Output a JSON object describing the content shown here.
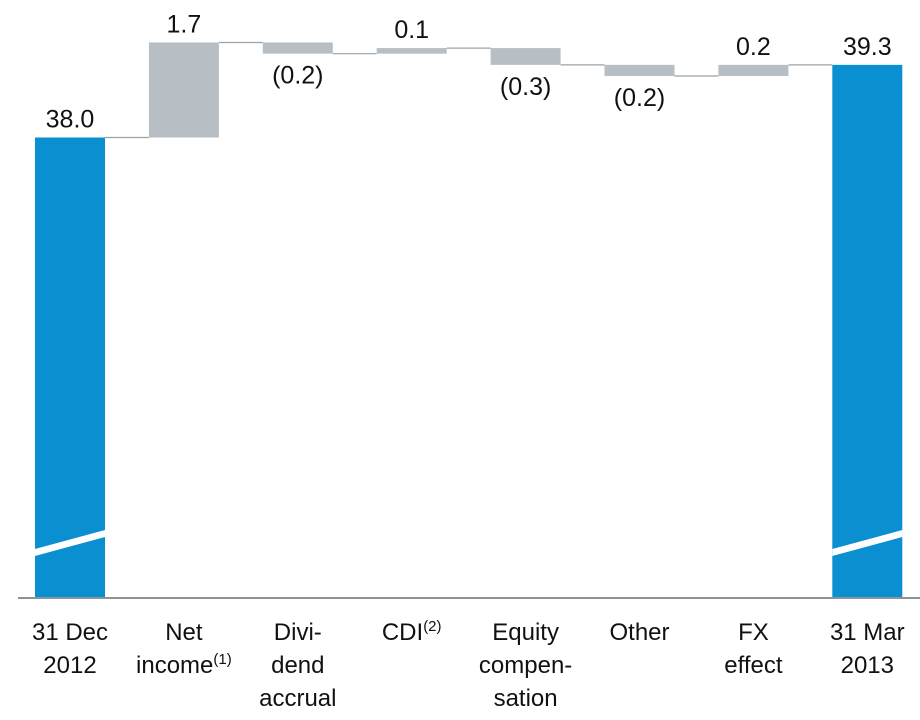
{
  "chart_data": {
    "type": "bar",
    "subtype": "waterfall",
    "categories": [
      [
        "31 Dec",
        "2012"
      ],
      [
        "Net",
        "income"
      ],
      [
        "Divi-",
        "dend",
        "accrual"
      ],
      [
        "CDI"
      ],
      [
        "Equity",
        "compen-",
        "sation"
      ],
      [
        "Other"
      ],
      [
        "FX",
        "effect"
      ],
      [
        "31 Mar",
        "2013"
      ]
    ],
    "category_superscripts": [
      "",
      "(1)",
      "",
      "(2)",
      "",
      "",
      "",
      ""
    ],
    "values": [
      38.0,
      1.7,
      -0.2,
      0.1,
      -0.3,
      -0.2,
      0.2,
      39.3
    ],
    "value_labels": [
      "38.0",
      "1.7",
      "(0.2)",
      "0.1",
      "(0.3)",
      "(0.2)",
      "0.2",
      "39.3"
    ],
    "bar_kind": [
      "total",
      "delta",
      "delta",
      "delta",
      "delta",
      "delta",
      "delta",
      "total"
    ],
    "axis_break": true,
    "xlabel": "",
    "ylabel": "",
    "grid": false,
    "colors": {
      "total": "#0a8fd1",
      "delta": "#b7bfc4",
      "axis": "#8a9499",
      "connector": "#9aa3a8",
      "text": "#111111"
    }
  }
}
